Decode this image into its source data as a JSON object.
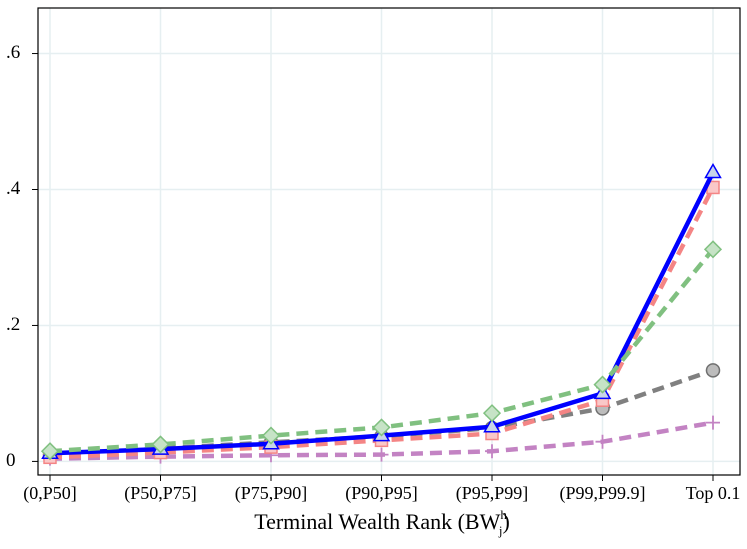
{
  "chart_data": {
    "type": "line",
    "categories": [
      "(0,P50]",
      "(P50,P75]",
      "(P75,P90]",
      "(P90,P95]",
      "(P95,P99]",
      "(P99,P99.9]",
      "Top 0.1"
    ],
    "xlabel_parts": [
      "Terminal Wealth Rank (BW",
      "h",
      "j",
      ")"
    ],
    "ylim": [
      -0.02,
      0.667
    ],
    "yticks": [
      0,
      {
        "value": 0.2,
        "label": ".2"
      },
      {
        "value": 0.4,
        "label": ".4"
      },
      {
        "value": 0.6,
        "label": ".6"
      }
    ],
    "grid": true,
    "series": [
      {
        "color": "#c383c3",
        "marker": "plus",
        "dashed": true,
        "values": [
          0.004,
          0.007,
          0.009,
          0.01,
          0.015,
          0.029,
          0.057
        ]
      },
      {
        "color": "#808080",
        "marker": "circle",
        "dashed": true,
        "values": [
          0.01,
          0.019,
          0.028,
          0.037,
          0.049,
          0.078,
          0.134
        ]
      },
      {
        "color": "#f48585",
        "marker": "square",
        "dashed": true,
        "values": [
          0.006,
          0.013,
          0.021,
          0.031,
          0.041,
          0.09,
          0.403
        ]
      },
      {
        "color": "#0000ff",
        "marker": "triangle",
        "dashed": false,
        "values": [
          0.012,
          0.018,
          0.026,
          0.038,
          0.051,
          0.1,
          0.425
        ]
      },
      {
        "color": "#80c080",
        "marker": "diamond",
        "dashed": true,
        "values": [
          0.015,
          0.025,
          0.038,
          0.05,
          0.071,
          0.113,
          0.312
        ]
      }
    ]
  }
}
